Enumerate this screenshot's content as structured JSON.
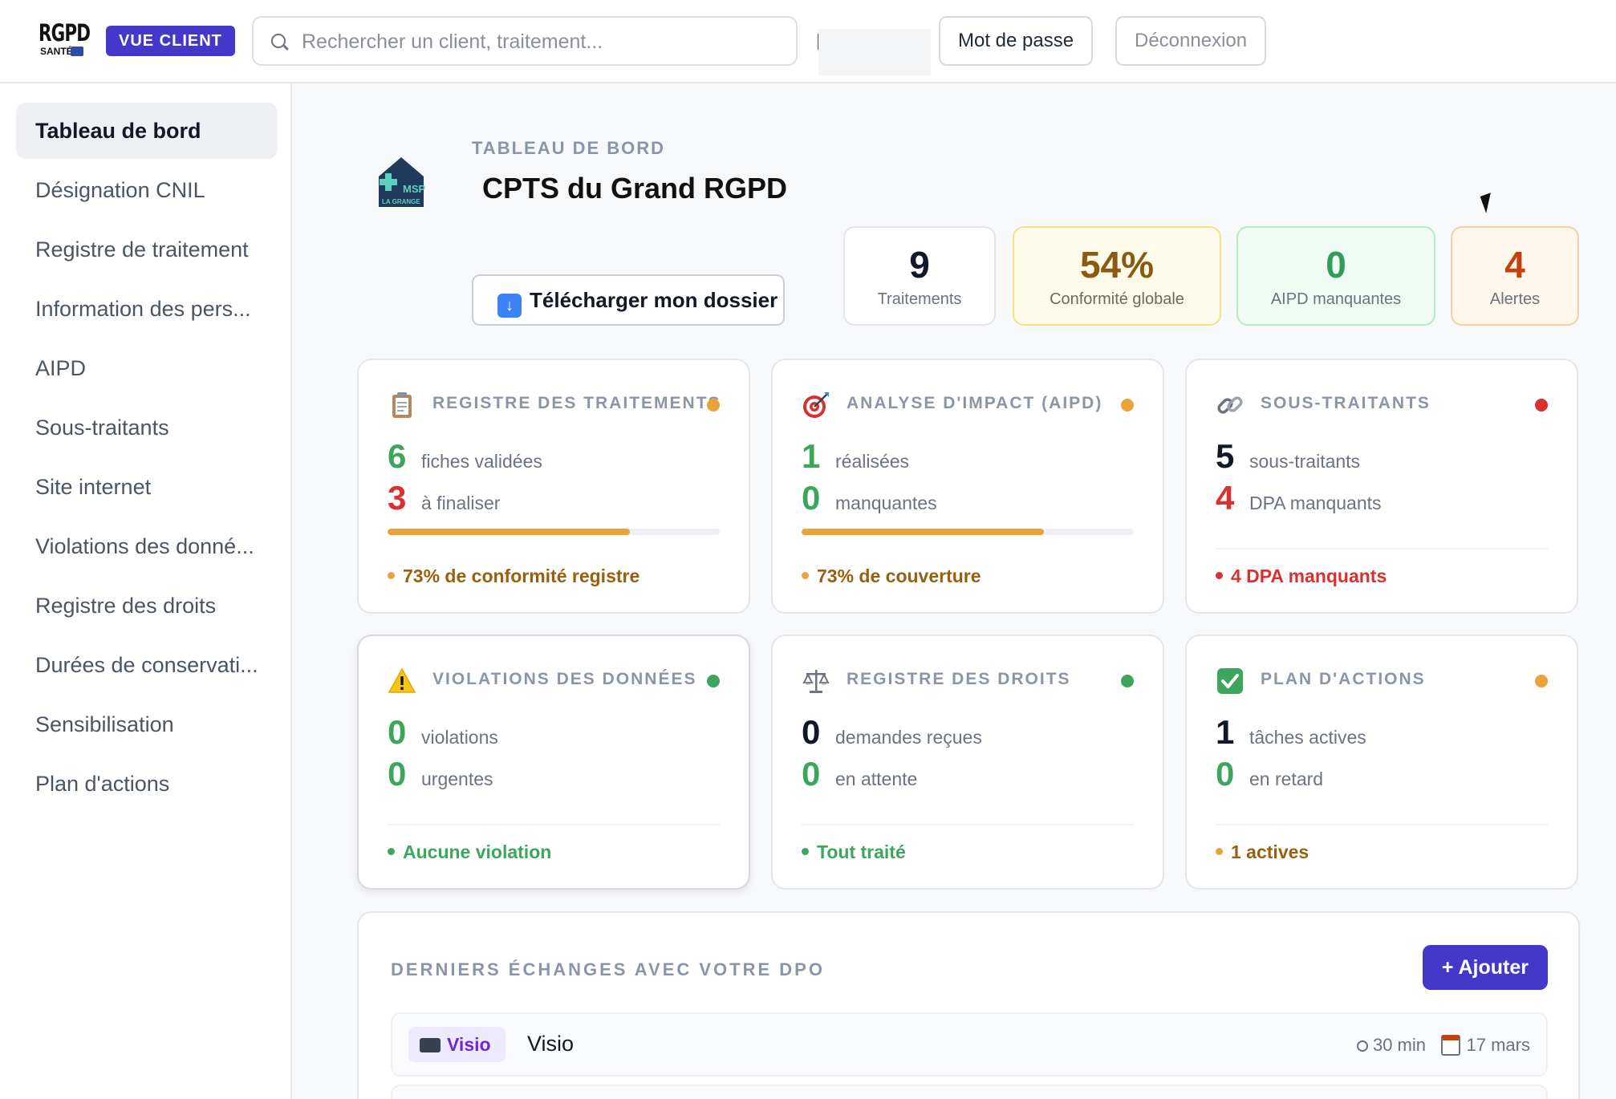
{
  "topbar": {
    "logo_line1": "RGPD",
    "logo_line2": "SANTÉ",
    "view_badge": "VUE CLIENT",
    "search_placeholder": "Rechercher un client, traitement...",
    "password_button": "Mot de passe",
    "logout_button": "Déconnexion"
  },
  "sidebar": {
    "items": [
      {
        "label": "Tableau de bord",
        "active": true
      },
      {
        "label": "Désignation CNIL"
      },
      {
        "label": "Registre de traitement"
      },
      {
        "label": "Information des pers..."
      },
      {
        "label": "AIPD"
      },
      {
        "label": "Sous-traitants"
      },
      {
        "label": "Site internet"
      },
      {
        "label": "Violations des donné..."
      },
      {
        "label": "Registre des droits"
      },
      {
        "label": "Durées de conservati..."
      },
      {
        "label": "Sensibilisation"
      },
      {
        "label": "Plan d'actions"
      }
    ]
  },
  "header": {
    "eyebrow": "TABLEAU DE BORD",
    "org_name": "CPTS du Grand RGPD",
    "org_logo_text": "MSP",
    "org_logo_subtext": "LA GRANGE",
    "download_button": "Télécharger mon dossier"
  },
  "kpis": [
    {
      "value": "9",
      "label": "Traitements"
    },
    {
      "value": "54%",
      "label": "Conformité globale"
    },
    {
      "value": "0",
      "label": "AIPD manquantes"
    },
    {
      "value": "4",
      "label": "Alertes"
    }
  ],
  "cards": [
    {
      "icon": "clipboard-icon",
      "title": "REGISTRE DES TRAITEMENTS",
      "status_color": "#eba23b",
      "rows": [
        {
          "n": "6",
          "t": "fiches validées"
        },
        {
          "n": "3",
          "t": "à finaliser"
        }
      ],
      "progress": 0.73,
      "status": "73% de conformité registre"
    },
    {
      "icon": "target-icon",
      "title": "ANALYSE D'IMPACT (AIPD)",
      "status_color": "#eba23b",
      "rows": [
        {
          "n": "1",
          "t": "réalisées"
        },
        {
          "n": "0",
          "t": "manquantes"
        }
      ],
      "progress": 0.73,
      "status": "73% de couverture"
    },
    {
      "icon": "link-icon",
      "title": "SOUS-TRAITANTS",
      "status_color": "#d93030",
      "rows": [
        {
          "n": "5",
          "t": "sous-traitants"
        },
        {
          "n": "4",
          "t": "DPA manquants"
        }
      ],
      "status": "4 DPA manquants"
    },
    {
      "icon": "warning-icon",
      "title": "VIOLATIONS DES DONNÉES",
      "status_color": "#3da65c",
      "rows": [
        {
          "n": "0",
          "t": "violations"
        },
        {
          "n": "0",
          "t": "urgentes"
        }
      ],
      "status": "Aucune violation"
    },
    {
      "icon": "scales-icon",
      "title": "REGISTRE DES DROITS",
      "status_color": "#3da65c",
      "rows": [
        {
          "n": "0",
          "t": "demandes reçues"
        },
        {
          "n": "0",
          "t": "en attente"
        }
      ],
      "status": "Tout traité"
    },
    {
      "icon": "check-icon",
      "title": "PLAN D'ACTIONS",
      "status_color": "#eba23b",
      "rows": [
        {
          "n": "1",
          "t": "tâches actives"
        },
        {
          "n": "0",
          "t": "en retard"
        }
      ],
      "status": "1 actives"
    }
  ],
  "dpo": {
    "title": "DERNIERS ÉCHANGES AVEC VOTRE DPO",
    "add_button": "+ Ajouter",
    "exchanges": [
      {
        "type": "Visio",
        "title": "Visio",
        "duration": "30 min",
        "date": "17 mars"
      }
    ]
  },
  "colors": {
    "accent": "#4338ca",
    "green": "#3da65c",
    "red": "#d93030",
    "orange": "#eba23b"
  }
}
